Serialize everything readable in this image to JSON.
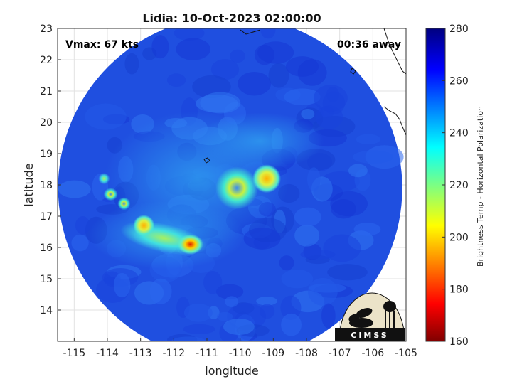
{
  "title": "Lidia: 10-Oct-2023 02:00:00",
  "annotations": {
    "vmax": "Vmax: 67 kts",
    "away": "00:36 away"
  },
  "logo": {
    "text": "CIMSS"
  },
  "colors": {
    "background": "#ffffff",
    "disk_base": "#1f4fe0",
    "grid": "#e0e0e0"
  },
  "chart_data": {
    "type": "heatmap",
    "xlabel": "longitude",
    "ylabel": "latitude",
    "xlim": [
      -115.5,
      -105
    ],
    "ylim": [
      13,
      23
    ],
    "xticks": [
      -115,
      -114,
      -113,
      -112,
      -111,
      -110,
      -109,
      -108,
      -107,
      -106,
      -105
    ],
    "yticks": [
      14,
      15,
      16,
      17,
      18,
      19,
      20,
      21,
      22,
      23
    ],
    "x_tick_labels": [
      "-115",
      "-114",
      "-113",
      "-112",
      "-111",
      "-110",
      "-109",
      "-108",
      "-107",
      "-106",
      "-105"
    ],
    "y_tick_labels": [
      "14",
      "15",
      "16",
      "17",
      "18",
      "19",
      "20",
      "21",
      "22",
      "23"
    ],
    "grid": true,
    "colormap": "jet",
    "colorbar": {
      "label": "Brightness Temp - Horizontal Polarization",
      "range": [
        160,
        280
      ],
      "ticks": [
        160,
        180,
        200,
        220,
        240,
        260,
        280
      ],
      "tick_labels": [
        "160",
        "180",
        "200",
        "220",
        "240",
        "260",
        "280"
      ]
    },
    "swath": {
      "center_lon": -110.3,
      "center_lat": 17.9,
      "radius_deg": 5.5
    },
    "features": [
      {
        "name": "eyewall",
        "lon": -110.1,
        "lat": 17.9,
        "tb": 212
      },
      {
        "name": "eyewall-east",
        "lon": -109.2,
        "lat": 18.2,
        "tb": 205
      },
      {
        "name": "band-core",
        "lon": -111.5,
        "lat": 16.1,
        "tb": 185
      },
      {
        "name": "band-west",
        "lon": -112.9,
        "lat": 16.7,
        "tb": 195
      },
      {
        "name": "band-nw-1",
        "lon": -113.9,
        "lat": 17.7,
        "tb": 215
      },
      {
        "name": "band-nw-2",
        "lon": -113.5,
        "lat": 17.4,
        "tb": 215
      },
      {
        "name": "band-nw-3",
        "lon": -114.1,
        "lat": 18.2,
        "tb": 225
      }
    ]
  }
}
